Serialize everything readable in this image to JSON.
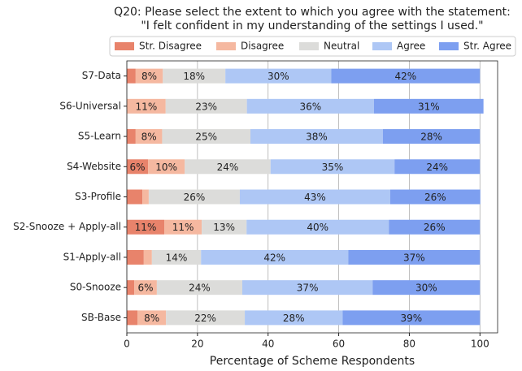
{
  "chart_data": {
    "type": "stacked-bar-horizontal",
    "title": [
      "Q20: Please select the extent to which you agree with the statement:",
      "\"I felt confident in my understanding of the settings I used.\""
    ],
    "x_label": "Percentage of Scheme Respondents",
    "categories": [
      "S7-Data",
      "S6-Universal",
      "S5-Learn",
      "S4-Website",
      "S3-Profile",
      "S2-Snooze + Apply-all",
      "S1-Apply-all",
      "S0-Snooze",
      "SB-Base"
    ],
    "series": [
      {
        "name": "Str. Disagree",
        "color": "#e8836b",
        "values": [
          2.5,
          0,
          2.5,
          6,
          4.4,
          10.6,
          4.8,
          2.1,
          3.0
        ],
        "value_labels": [
          null,
          null,
          null,
          "6%",
          null,
          "11%",
          null,
          null,
          null
        ]
      },
      {
        "name": "Disagree",
        "color": "#f5b8a0",
        "values": [
          7.7,
          11,
          7.5,
          10.4,
          1.8,
          10.6,
          2.3,
          6.4,
          8.1
        ],
        "value_labels": [
          "8%",
          "11%",
          "8%",
          "10%",
          null,
          "11%",
          null,
          "6%",
          "8%"
        ]
      },
      {
        "name": "Neutral",
        "color": "#dcdcda",
        "values": [
          17.7,
          23,
          25,
          24.3,
          25.8,
          12.7,
          13.9,
          24.2,
          22.3
        ],
        "value_labels": [
          "18%",
          "23%",
          "25%",
          "24%",
          "26%",
          "13%",
          "14%",
          "24%",
          "22%"
        ]
      },
      {
        "name": "Agree",
        "color": "#aec7f5",
        "values": [
          30,
          36,
          37.5,
          35.1,
          42.6,
          40.3,
          41.7,
          36.9,
          27.7
        ],
        "value_labels": [
          "30%",
          "36%",
          "38%",
          "35%",
          "43%",
          "40%",
          "42%",
          "37%",
          "28%"
        ]
      },
      {
        "name": "Str. Agree",
        "color": "#7d9ff0",
        "values": [
          42.1,
          31,
          27.5,
          24.2,
          25.5,
          25.8,
          37.3,
          30.4,
          38.9
        ],
        "value_labels": [
          "42%",
          "31%",
          "28%",
          "24%",
          "26%",
          "26%",
          "37%",
          "30%",
          "39%"
        ]
      }
    ],
    "xlim": [
      0,
      105
    ],
    "xticks": [
      0,
      20,
      40,
      60,
      80,
      100
    ],
    "grid": true,
    "legend": "top"
  }
}
